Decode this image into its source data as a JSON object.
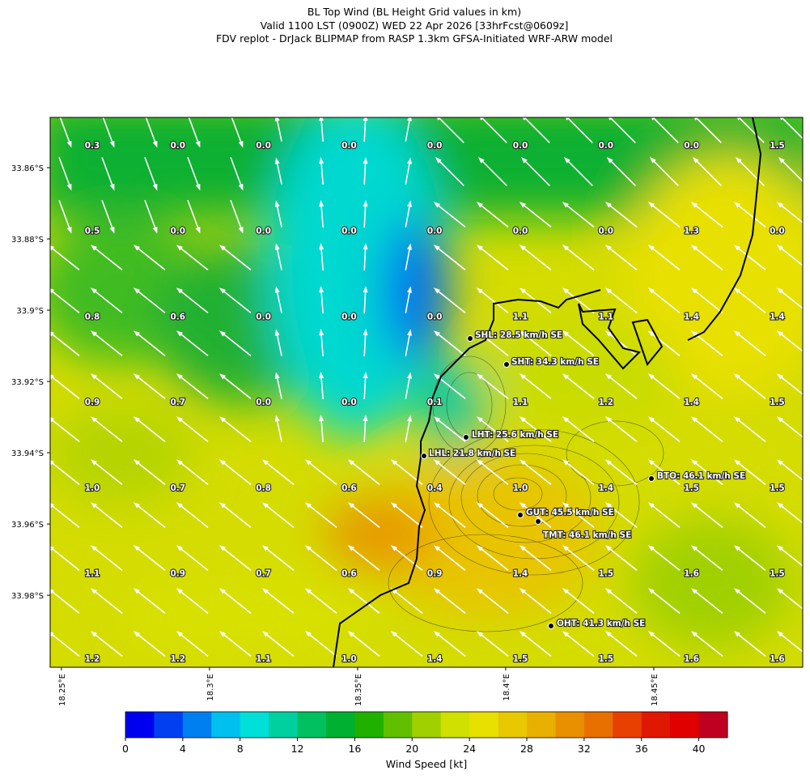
{
  "header": {
    "title": "BL Top Wind (BL Height Grid values in km)",
    "subtitle": "Valid 1100 LST (0900Z) WED 22 Apr 2026 [33hrFcst@0609z]",
    "source": "FDV replot - DrJack BLIPMAP from RASP 1.3km GFSA-Initiated WRF-ARW model"
  },
  "map": {
    "lon_lim": [
      18.2462,
      18.5003
    ],
    "lat_lim": [
      -33.8459,
      -34.0002
    ],
    "lat_ticks": [
      {
        "value": -33.86,
        "label": "33.86°S"
      },
      {
        "value": -33.88,
        "label": "33.88°S"
      },
      {
        "value": -33.9,
        "label": "33.9°S"
      },
      {
        "value": -33.92,
        "label": "33.92°S"
      },
      {
        "value": -33.94,
        "label": "33.94°S"
      },
      {
        "value": -33.96,
        "label": "33.96°S"
      },
      {
        "value": -33.98,
        "label": "33.98°S"
      }
    ],
    "lon_ticks": [
      {
        "value": 18.25,
        "label": "18.25°E"
      },
      {
        "value": 18.3,
        "label": "18.3°E"
      },
      {
        "value": 18.35,
        "label": "18.35°E"
      },
      {
        "value": 18.4,
        "label": "18.4°E"
      },
      {
        "value": 18.45,
        "label": "18.45°E"
      }
    ],
    "bl_height_grid": [
      [
        "0.3",
        "0.0",
        "0.0",
        "0.0",
        "0.0",
        "0.0",
        "0.0",
        "0.0",
        "1.5"
      ],
      [
        "0.5",
        "0.0",
        "0.0",
        "0.0",
        "0.0",
        "0.0",
        "0.0",
        "1.3",
        "0.0"
      ],
      [
        "0.8",
        "0.6",
        "0.0",
        "0.0",
        "0.0",
        "1.1",
        "1.1",
        "1.4",
        "1.4"
      ],
      [
        "0.9",
        "0.7",
        "0.0",
        "0.0",
        "0.1",
        "1.1",
        "1.2",
        "1.4",
        "1.5"
      ],
      [
        "1.0",
        "0.7",
        "0.8",
        "0.6",
        "0.4",
        "1.0",
        "1.4",
        "1.5",
        "1.5"
      ],
      [
        "1.1",
        "0.9",
        "0.7",
        "0.6",
        "0.9",
        "1.4",
        "1.5",
        "1.6",
        "1.5"
      ],
      [
        "1.2",
        "1.2",
        "1.1",
        "1.0",
        "1.4",
        "1.5",
        "1.5",
        "1.6",
        "1.6"
      ]
    ],
    "stations": [
      "SHL: 28.5 km/h SE",
      "SHT: 34.3 km/h SE",
      "LHT: 25.6 km/h SE",
      "LHL: 21.8 km/h SE",
      "BTO: 46.1 km/h SE",
      "GUT: 45.5 km/h SE",
      "TMT: 46.1 km/h SE",
      "OHT: 41.3 km/h SE"
    ]
  },
  "colorbar": {
    "label": "Wind Speed [kt]",
    "lim": [
      0,
      42
    ],
    "ticks": [
      0,
      4,
      8,
      12,
      16,
      20,
      24,
      28,
      32,
      36,
      40
    ],
    "colors": [
      "#0000f0",
      "#0040f0",
      "#0080f0",
      "#00c0f0",
      "#00e0d8",
      "#00d0a0",
      "#00c060",
      "#00b030",
      "#20b000",
      "#60c000",
      "#a0d000",
      "#d0e000",
      "#e8e000",
      "#e8c800",
      "#e8b000",
      "#e89000",
      "#e87000",
      "#e84000",
      "#e01800",
      "#e00000",
      "#c00020"
    ]
  }
}
